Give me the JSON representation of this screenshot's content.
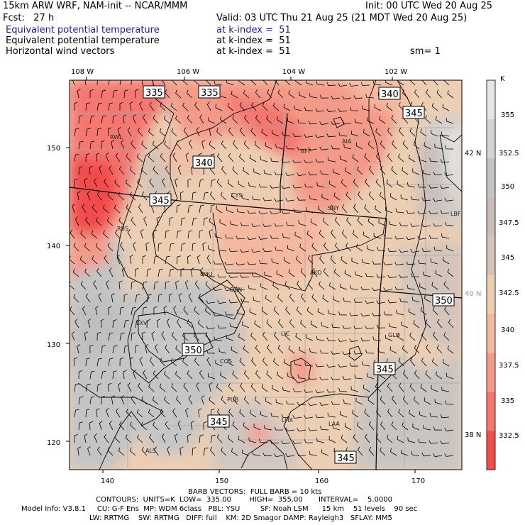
{
  "header": {
    "model_title": "15km ARW WRF, NAM-init -- NCAR/MMM",
    "init_time": "Init: 00 UTC Wed 20 Aug 25",
    "forecast_hour": "Fcst:   27 h",
    "valid_time": "Valid: 03 UTC Thu 21 Aug 25 (21 MDT Wed 20 Aug 25)",
    "fields": [
      {
        "name": "Equivalent potential temperature",
        "level": "at k-index =  51",
        "color": "#1a1aa8"
      },
      {
        "name": "Equivalent potential temperature",
        "level": "at k-index =  51",
        "color": "#000000"
      },
      {
        "name": "Horizontal wind vectors",
        "level": "at k-index =  51",
        "color": "#000000"
      }
    ],
    "smoothing": "sm= 1"
  },
  "map": {
    "top_lon_labels": [
      "108 W",
      "106 W",
      "104 W",
      "102 W"
    ],
    "bottom_x_labels": [
      "140",
      "150",
      "160",
      "170"
    ],
    "left_y_labels": [
      "150",
      "140",
      "130",
      "120"
    ],
    "right_lat_labels": [
      "42 N",
      "40 N",
      "38 N"
    ],
    "contour_labels": [
      "335",
      "335",
      "340",
      "345",
      "340",
      "345",
      "350",
      "350",
      "345",
      "345",
      "345"
    ],
    "cities": [
      "RWL",
      "BFF",
      "AIA",
      "CYS",
      "SNY",
      "LBF",
      "RBS",
      "BOU",
      "DEN",
      "AKO",
      "LXV",
      "LIC",
      "GLD",
      "COS",
      "PUB",
      "LHX",
      "LAA",
      "ALS"
    ]
  },
  "colorbar": {
    "unit": "K",
    "ticks": [
      "355",
      "352.5",
      "350",
      "347.5",
      "345",
      "342.5",
      "340",
      "337.5",
      "335",
      "332.5"
    ],
    "colors": [
      "#e6e6e6",
      "#d4d4d4",
      "#c4c4c4",
      "#c8bdb9",
      "#d6c3b8",
      "#ecceb3",
      "#f4b8a0",
      "#f49a88",
      "#f4776f",
      "#f24c4c"
    ]
  },
  "footer": {
    "barb_info": "BARB VECTORS:  FULL BARB = 10 kts",
    "contour_info": "CONTOURS:  UNITS=K  LOW=  335.00        HIGH=  355.00       INTERVAL=    5.0000",
    "model_info_1": "Model Info: V3.8.1     CU: G-F Ens  MP: WDM 6class   PBL: YSU         SF: Noah LSM      15 km    51 levels    90 sec",
    "model_info_2": "LW: RRTMG    SW: RRTMG   DIFF: full    KM: 2D Smagor DAMP: Rayleigh3   SFLAY: MM5"
  }
}
